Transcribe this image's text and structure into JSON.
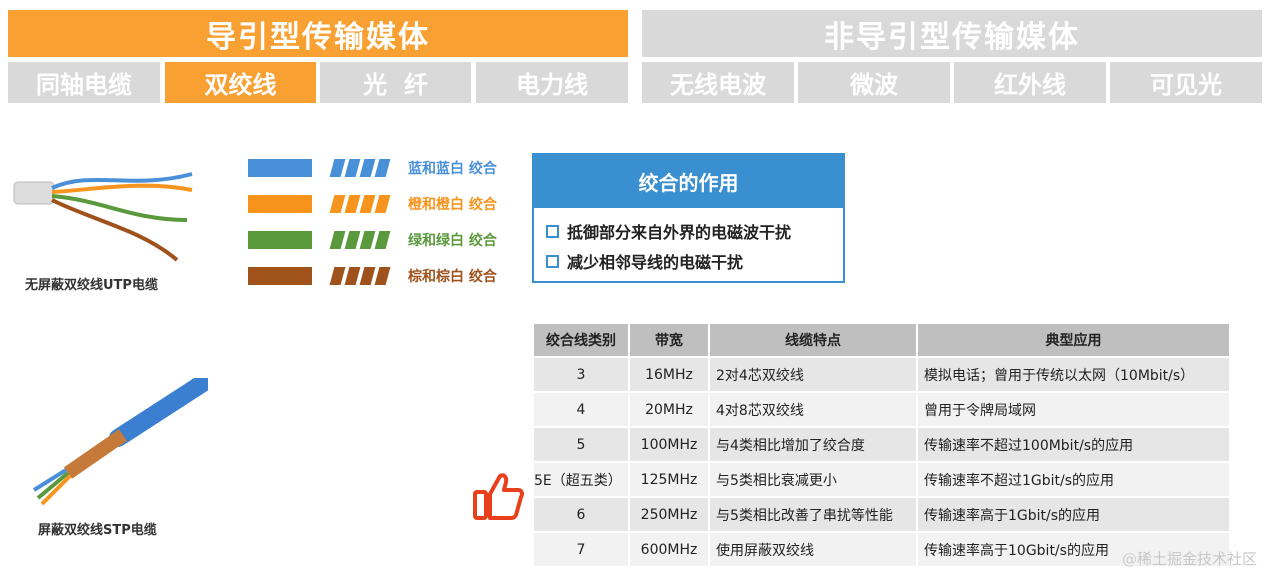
{
  "header": {
    "guided": "导引型传输媒体",
    "unguided": "非导引型传输媒体"
  },
  "tabs": {
    "guided": [
      "同轴电缆",
      "双绞线",
      "光  纤",
      "电力线"
    ],
    "unguided": [
      "无线电波",
      "微波",
      "红外线",
      "可见光"
    ],
    "active": "双绞线"
  },
  "colors": {
    "orange": "#f9a033",
    "gray": "#d9d9d9",
    "blue": "#3a8fd0"
  },
  "utp_caption": "无屏蔽双绞线UTP电缆",
  "stp_caption": "屏蔽双绞线STP电缆",
  "legend": [
    {
      "label": "蓝和蓝白 绞合",
      "color": "#4a90d9"
    },
    {
      "label": "橙和橙白 绞合",
      "color": "#f7941d"
    },
    {
      "label": "绿和绿白 绞合",
      "color": "#5a9a3c"
    },
    {
      "label": "棕和棕白 绞合",
      "color": "#a0521c"
    }
  ],
  "box": {
    "title": "绞合的作用",
    "items": [
      "抵御部分来自外界的电磁波干扰",
      "减少相邻导线的电磁干扰"
    ]
  },
  "table": {
    "headers": [
      "绞合线类别",
      "带宽",
      "线缆特点",
      "典型应用"
    ],
    "rows": [
      [
        "3",
        "16MHz",
        "2对4芯双绞线",
        "模拟电话；曾用于传统以太网（10Mbit/s）"
      ],
      [
        "4",
        "20MHz",
        "4对8芯双绞线",
        "曾用于令牌局域网"
      ],
      [
        "5",
        "100MHz",
        "与4类相比增加了绞合度",
        "传输速率不超过100Mbit/s的应用"
      ],
      [
        "5E（超五类）",
        "125MHz",
        "与5类相比衰减更小",
        "传输速率不超过1Gbit/s的应用"
      ],
      [
        "6",
        "250MHz",
        "与5类相比改善了串扰等性能",
        "传输速率高于1Gbit/s的应用"
      ],
      [
        "7",
        "600MHz",
        "使用屏蔽双绞线",
        "传输速率高于10Gbit/s的应用"
      ]
    ]
  },
  "watermark": "@稀土掘金技术社区"
}
